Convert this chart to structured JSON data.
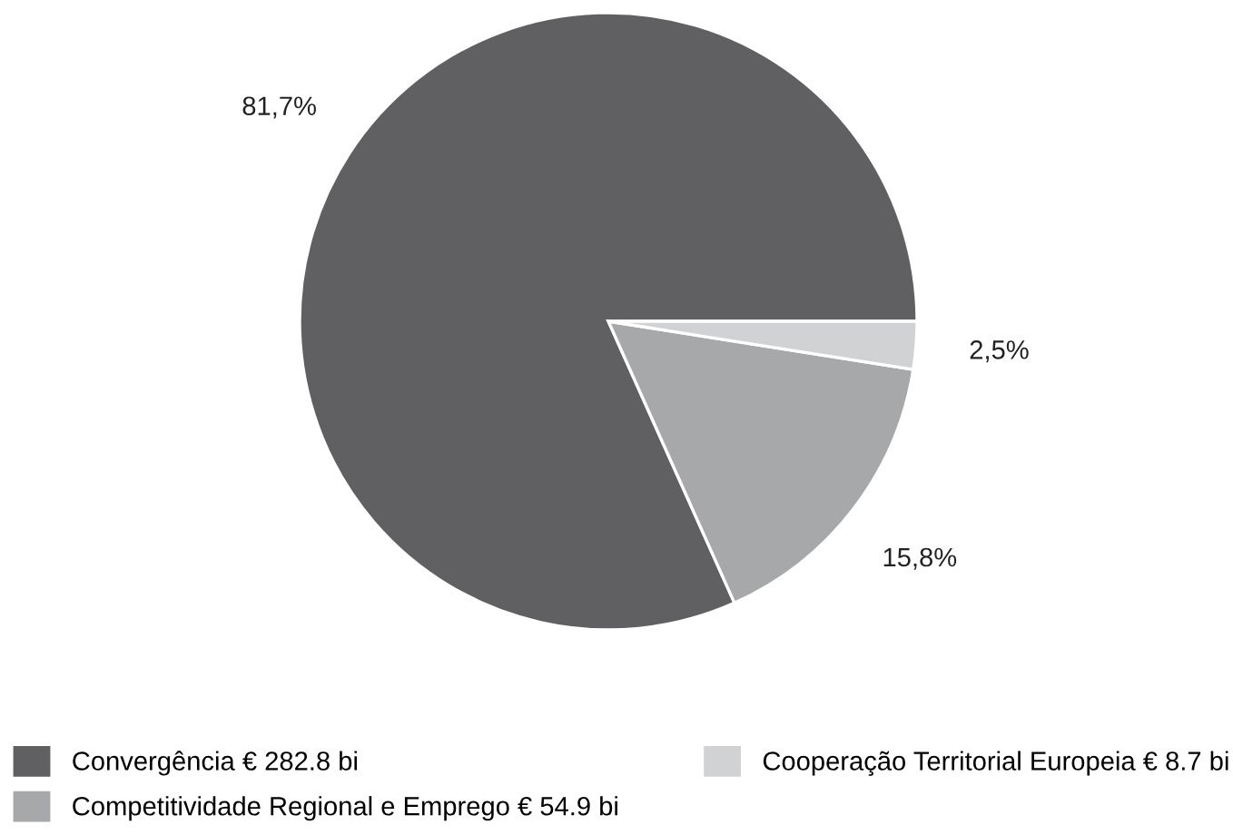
{
  "chart_data": {
    "type": "pie",
    "categories": [
      "Convergência € 282.8 bi",
      "Competitividade Regional e Emprego € 54.9 bi",
      "Cooperação Territorial Europeia € 8.7 bi"
    ],
    "values": [
      81.7,
      15.8,
      2.5
    ],
    "colors": [
      "#606062",
      "#a7a8aa",
      "#d1d2d4"
    ],
    "value_labels": [
      "81,7%",
      "15,8%",
      "2,5%"
    ],
    "legend": "bottom"
  }
}
